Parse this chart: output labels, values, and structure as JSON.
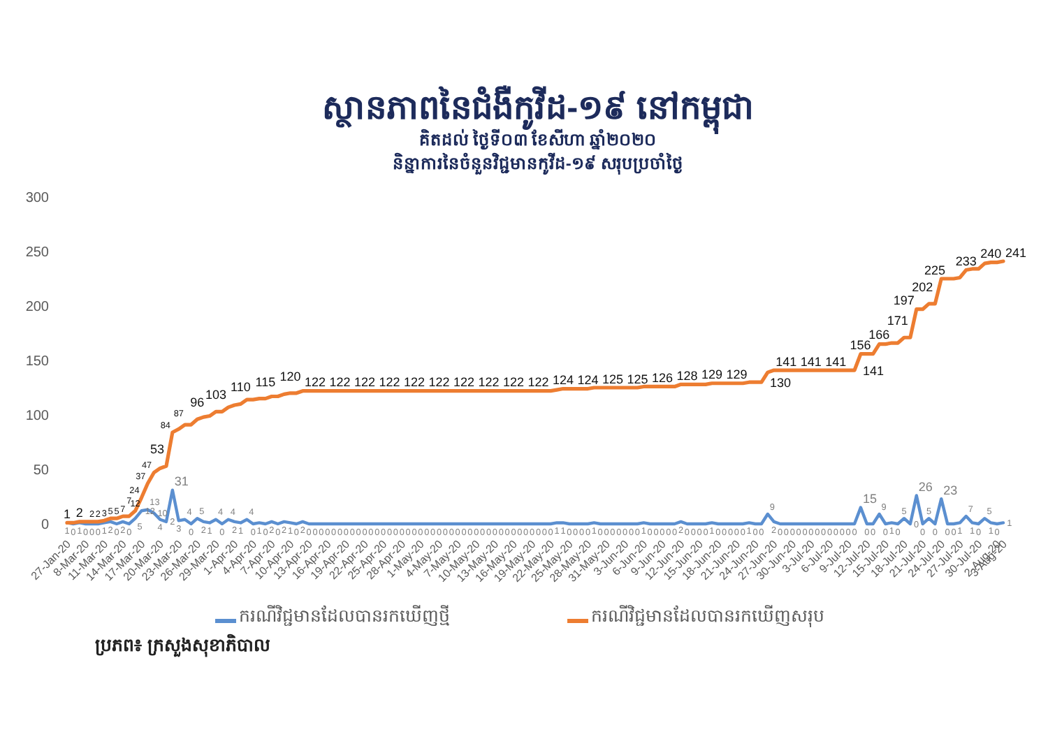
{
  "chart_data": {
    "type": "line",
    "title": "ស្ថានភាពនៃជំងឺកូវីដ-១៩ នៅកម្ពុជា",
    "subtitle": "គិតដល់ ថ្ងៃទី០៣ ខែសីហា ឆ្នាំ២០២០\nនិន្នាការនៃចំនួនវិជ្ជមានកូវីដ-១៩ សរុបប្រចាំថ្ងៃ",
    "categories": [
      "27-Jan-20",
      null,
      null,
      "8-Mar-20",
      null,
      null,
      "11-Mar-20",
      null,
      null,
      "14-Mar-20",
      null,
      null,
      "17-Mar-20",
      null,
      null,
      "20-Mar-20",
      null,
      null,
      "23-Mar-20",
      null,
      null,
      "26-Mar-20",
      null,
      null,
      "29-Mar-20",
      null,
      null,
      "1-Apr-20",
      null,
      null,
      "4-Apr-20",
      null,
      null,
      "7-Apr-20",
      null,
      null,
      "10-Apr-20",
      null,
      null,
      "13-Apr-20",
      null,
      null,
      "16-Apr-20",
      null,
      null,
      "19-Apr-20",
      null,
      null,
      "22-Apr-20",
      null,
      null,
      "25-Apr-20",
      null,
      null,
      "28-Apr-20",
      null,
      null,
      "1-May-20",
      null,
      null,
      "4-May-20",
      null,
      null,
      "7-May-20",
      null,
      null,
      "10-May-20",
      null,
      null,
      "13-May-20",
      null,
      null,
      "16-May-20",
      null,
      null,
      "19-May-20",
      null,
      null,
      "22-May-20",
      null,
      null,
      "25-May-20",
      null,
      null,
      "28-May-20",
      null,
      null,
      "31-May-20",
      null,
      null,
      "3-Jun-20",
      null,
      null,
      "6-Jun-20",
      null,
      null,
      "9-Jun-20",
      null,
      null,
      "12-Jun-20",
      null,
      null,
      "15-Jun-20",
      null,
      null,
      "18-Jun-20",
      null,
      null,
      "21-Jun-20",
      null,
      null,
      "24-Jun-20",
      null,
      null,
      "27-Jun-20",
      null,
      null,
      "30-Jun-20",
      null,
      null,
      "3-Jul-20",
      null,
      null,
      "6-Jul-20",
      null,
      null,
      "9-Jul-20",
      null,
      null,
      "12-Jul-20",
      null,
      null,
      "15-Jul-20",
      null,
      null,
      "18-Jul-20",
      null,
      null,
      "21-Jul-20",
      null,
      null,
      "24-Jul-20",
      null,
      null,
      "27-Jul-20",
      null,
      null,
      "30-Jul-20",
      null,
      null,
      "2-Aug-20",
      "3-Aug-20"
    ],
    "ylim": [
      0,
      300
    ],
    "yticks": [
      0,
      50,
      100,
      150,
      200,
      250,
      300
    ],
    "legend": "bottom",
    "series": [
      {
        "name": "ករណីវិជ្ជមានដែលបានរកឃើញថ្មី",
        "color": "#5b8fd0",
        "values": [
          1,
          0,
          1,
          0,
          0,
          0,
          1,
          2,
          0,
          2,
          0,
          5,
          12,
          13,
          10,
          4,
          2,
          31,
          3,
          4,
          0,
          5,
          2,
          1,
          4,
          0,
          4,
          2,
          1,
          4,
          0,
          1,
          0,
          2,
          0,
          2,
          1,
          0,
          2,
          0,
          0,
          0,
          0,
          0,
          0,
          0,
          0,
          0,
          0,
          0,
          0,
          0,
          0,
          0,
          0,
          0,
          0,
          0,
          0,
          0,
          0,
          0,
          0,
          0,
          0,
          0,
          0,
          0,
          0,
          0,
          0,
          0,
          0,
          0,
          0,
          0,
          0,
          0,
          0,
          1,
          1,
          0,
          0,
          0,
          0,
          1,
          0,
          0,
          0,
          0,
          0,
          0,
          0,
          1,
          0,
          0,
          0,
          0,
          0,
          2,
          0,
          0,
          0,
          0,
          1,
          0,
          0,
          0,
          0,
          0,
          1,
          0,
          0,
          9,
          2,
          0,
          0,
          0,
          0,
          0,
          0,
          0,
          0,
          0,
          0,
          0,
          0,
          0,
          15,
          0,
          0,
          9,
          0,
          1,
          0,
          5,
          0,
          26,
          0,
          5,
          0,
          23,
          0,
          0,
          1,
          7,
          1,
          0,
          5,
          1,
          0,
          1
        ],
        "value_labels": [
          "1",
          "0",
          "1",
          "0",
          "0",
          "0",
          "1",
          "2",
          "0",
          "2",
          "0",
          "5",
          "12",
          "13",
          "10",
          "4",
          "2",
          "31",
          "3",
          "4",
          "0",
          "5",
          "2",
          "1",
          "4",
          "0",
          "4",
          "2",
          "1",
          "4",
          "0",
          "1",
          "0",
          "2",
          "0",
          "2",
          "1",
          "0",
          "2",
          "0",
          "0",
          "0",
          "0",
          "0",
          "0",
          "0",
          "0",
          "0",
          "0",
          "0",
          "0",
          "0",
          "0",
          "0",
          "0",
          "0",
          "0",
          "0",
          "0",
          "0",
          "0",
          "0",
          "0",
          "0",
          "0",
          "0",
          "0",
          "0",
          "0",
          "0",
          "0",
          "0",
          "0",
          "0",
          "0",
          "0",
          "0",
          "0",
          "0",
          "1",
          "1",
          "0",
          "0",
          "0",
          "0",
          "1",
          "0",
          "0",
          "0",
          "0",
          "0",
          "0",
          "0",
          "1",
          "0",
          "0",
          "0",
          "0",
          "0",
          "2",
          "0",
          "0",
          "0",
          "0",
          "1",
          "0",
          "0",
          "0",
          "0",
          "0",
          "1",
          "0",
          "0",
          "9",
          "2",
          "0",
          "0",
          "0",
          "0",
          "0",
          "0",
          "0",
          "0",
          "0",
          "0",
          "0",
          "0",
          "0",
          "15",
          "0",
          "0",
          "9",
          "0",
          "1",
          "0",
          "5",
          "0",
          "26",
          "0",
          "5",
          "0",
          "23",
          "0",
          "0",
          "1",
          "7",
          "1",
          "0",
          "5",
          "1",
          "0",
          "1"
        ]
      },
      {
        "name": "ករណីវិជ្ជមានដែលបានរកឃើញសរុប",
        "color": "#ed7d31",
        "values": [
          1,
          1,
          2,
          2,
          2,
          2,
          3,
          5,
          5,
          7,
          7,
          12,
          24,
          37,
          47,
          51,
          53,
          84,
          87,
          91,
          91,
          96,
          98,
          99,
          103,
          103,
          107,
          109,
          110,
          114,
          114,
          115,
          115,
          117,
          117,
          119,
          120,
          120,
          122,
          122,
          122,
          122,
          122,
          122,
          122,
          122,
          122,
          122,
          122,
          122,
          122,
          122,
          122,
          122,
          122,
          122,
          122,
          122,
          122,
          122,
          122,
          122,
          122,
          122,
          122,
          122,
          122,
          122,
          122,
          122,
          122,
          122,
          122,
          122,
          122,
          122,
          122,
          122,
          122,
          123,
          124,
          124,
          124,
          124,
          124,
          125,
          125,
          125,
          125,
          125,
          125,
          125,
          125,
          126,
          126,
          126,
          126,
          126,
          126,
          128,
          128,
          128,
          128,
          128,
          129,
          129,
          129,
          129,
          129,
          129,
          130,
          130,
          130,
          139,
          141,
          141,
          141,
          141,
          141,
          141,
          141,
          141,
          141,
          141,
          141,
          141,
          141,
          141,
          156,
          156,
          156,
          165,
          165,
          166,
          166,
          171,
          171,
          197,
          197,
          202,
          202,
          225,
          225,
          225,
          226,
          233,
          234,
          234,
          239,
          240,
          240,
          241
        ],
        "value_labels": [
          "1",
          null,
          "2",
          null,
          "2",
          "2",
          "3",
          "5",
          "5",
          "7",
          "7",
          "12",
          "24",
          "37",
          "47",
          null,
          "53",
          "84",
          "87",
          null,
          null,
          "96",
          null,
          null,
          "103",
          null,
          null,
          null,
          "110",
          null,
          null,
          null,
          "115",
          null,
          null,
          null,
          "120",
          null,
          null,
          null,
          "122",
          null,
          null,
          null,
          "122",
          null,
          null,
          null,
          "122",
          null,
          null,
          null,
          "122",
          null,
          null,
          null,
          "122",
          null,
          null,
          null,
          "122",
          null,
          null,
          null,
          "122",
          null,
          null,
          null,
          "122",
          null,
          null,
          null,
          "122",
          null,
          null,
          null,
          "122",
          null,
          null,
          null,
          "124",
          null,
          null,
          null,
          "124",
          null,
          null,
          null,
          "125",
          null,
          null,
          null,
          "125",
          null,
          null,
          null,
          "126",
          null,
          null,
          null,
          "128",
          null,
          null,
          null,
          "129",
          null,
          null,
          null,
          "129",
          null,
          null,
          null,
          "130",
          null,
          null,
          null,
          "141",
          null,
          null,
          null,
          "141",
          null,
          null,
          null,
          "141",
          null,
          null,
          "141",
          null,
          null,
          "156",
          null,
          null,
          "166",
          null,
          null,
          "171",
          "197",
          null,
          null,
          "202",
          null,
          "225",
          null,
          null,
          "233",
          null,
          null,
          null,
          "240",
          null,
          "241"
        ]
      }
    ],
    "annotations": [
      "ប្រភព៖ ក្រសួងសុខាភិបាល"
    ]
  }
}
